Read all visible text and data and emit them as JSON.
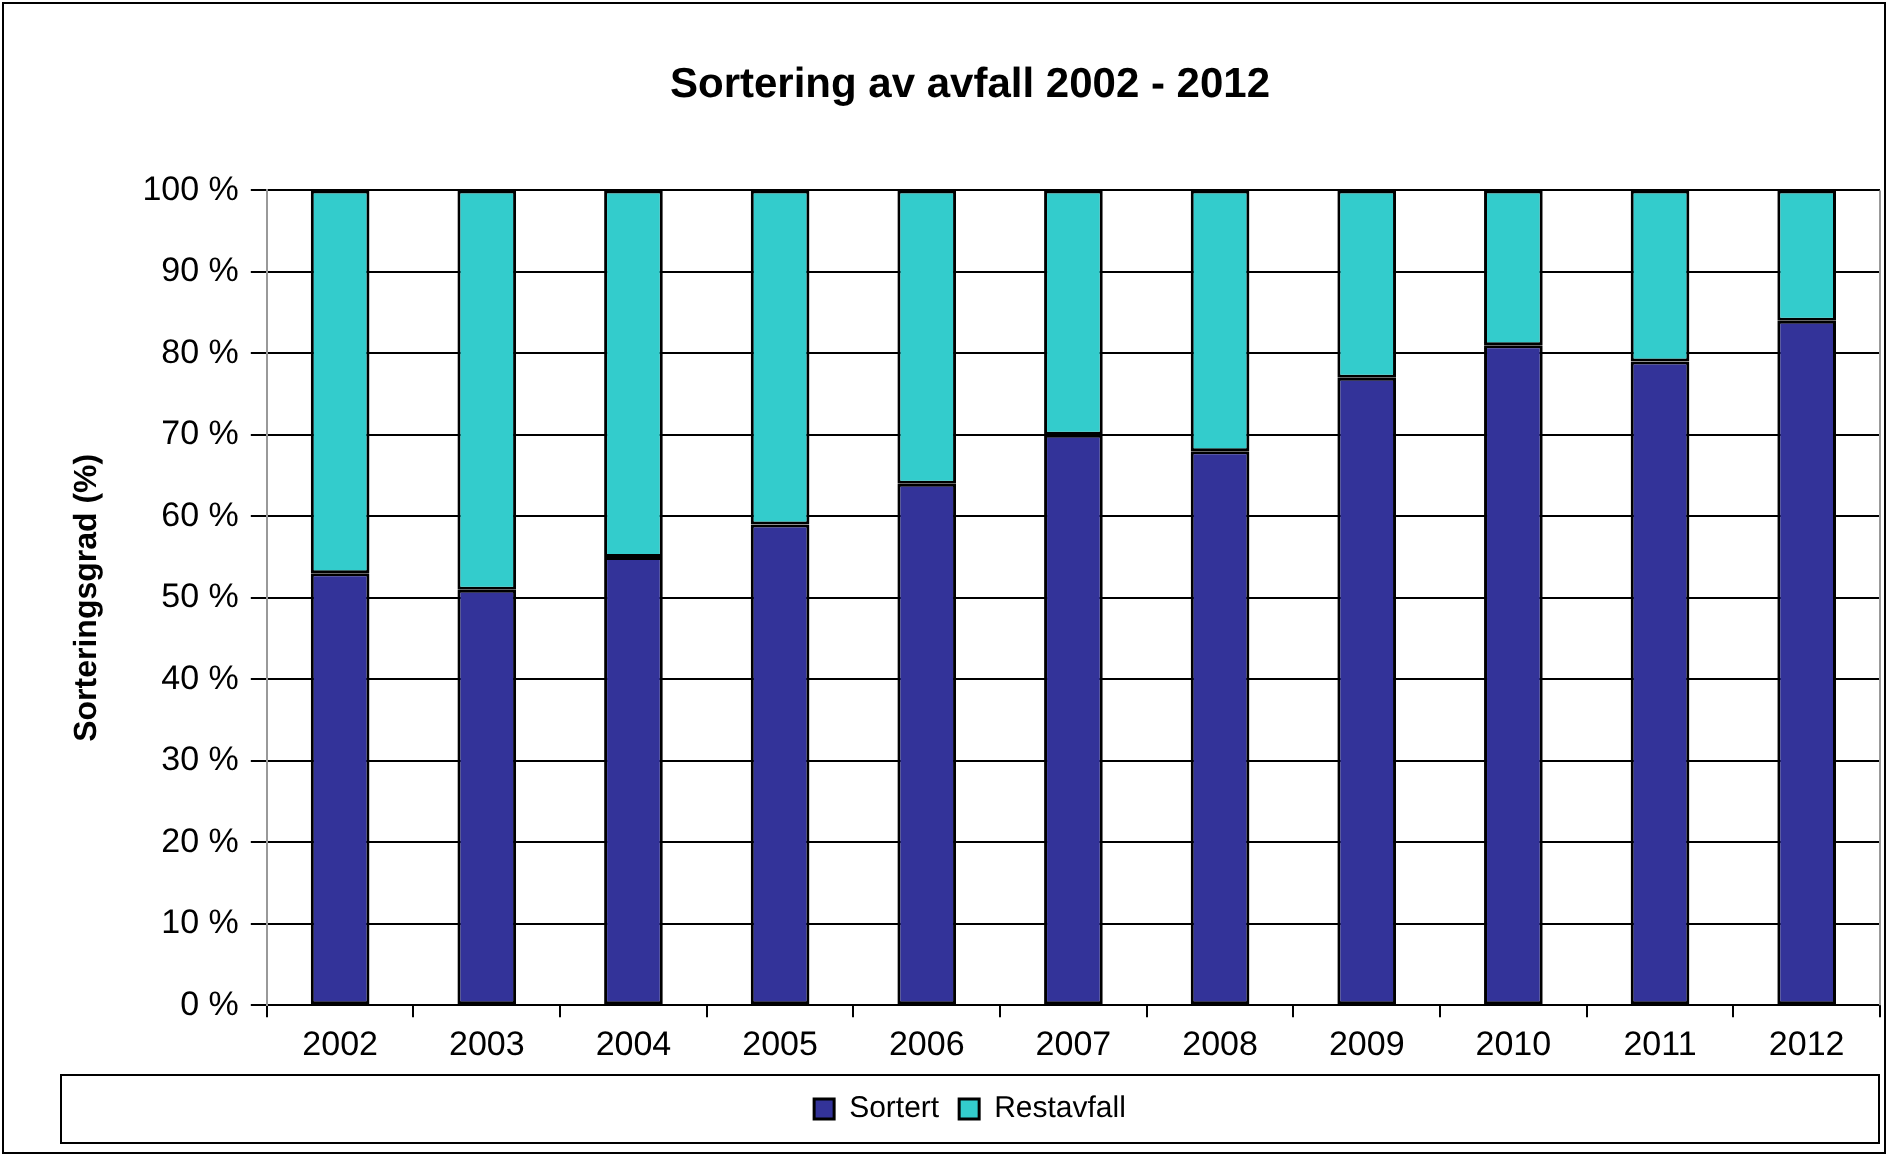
{
  "chart_data": {
    "type": "bar",
    "title": "Sortering av avfall 2002 - 2012",
    "ylabel": "Sorteringsgrad (%)",
    "categories": [
      "2002",
      "2003",
      "2004",
      "2005",
      "2006",
      "2007",
      "2008",
      "2009",
      "2010",
      "2011",
      "2012"
    ],
    "series": [
      {
        "name": "Sortert",
        "color": "#333399",
        "values": [
          53,
          51,
          55,
          59,
          64,
          70,
          68,
          77,
          81,
          79,
          84
        ]
      },
      {
        "name": "Restavfall",
        "color": "#33cccc",
        "values": [
          47,
          49,
          45,
          41,
          36,
          30,
          32,
          23,
          19,
          21,
          16
        ]
      }
    ],
    "stacked": true,
    "ylim": [
      0,
      100
    ],
    "yticks": [
      {
        "value": 0,
        "label": "0 %"
      },
      {
        "value": 10,
        "label": "10 %"
      },
      {
        "value": 20,
        "label": "20 %"
      },
      {
        "value": 30,
        "label": "30 %"
      },
      {
        "value": 40,
        "label": "40 %"
      },
      {
        "value": 50,
        "label": "50 %"
      },
      {
        "value": 60,
        "label": "60 %"
      },
      {
        "value": 70,
        "label": "70 %"
      },
      {
        "value": 80,
        "label": "80 %"
      },
      {
        "value": 90,
        "label": "90 %"
      },
      {
        "value": 100,
        "label": "100 %"
      }
    ],
    "grid": "y",
    "legend": "bottom"
  }
}
